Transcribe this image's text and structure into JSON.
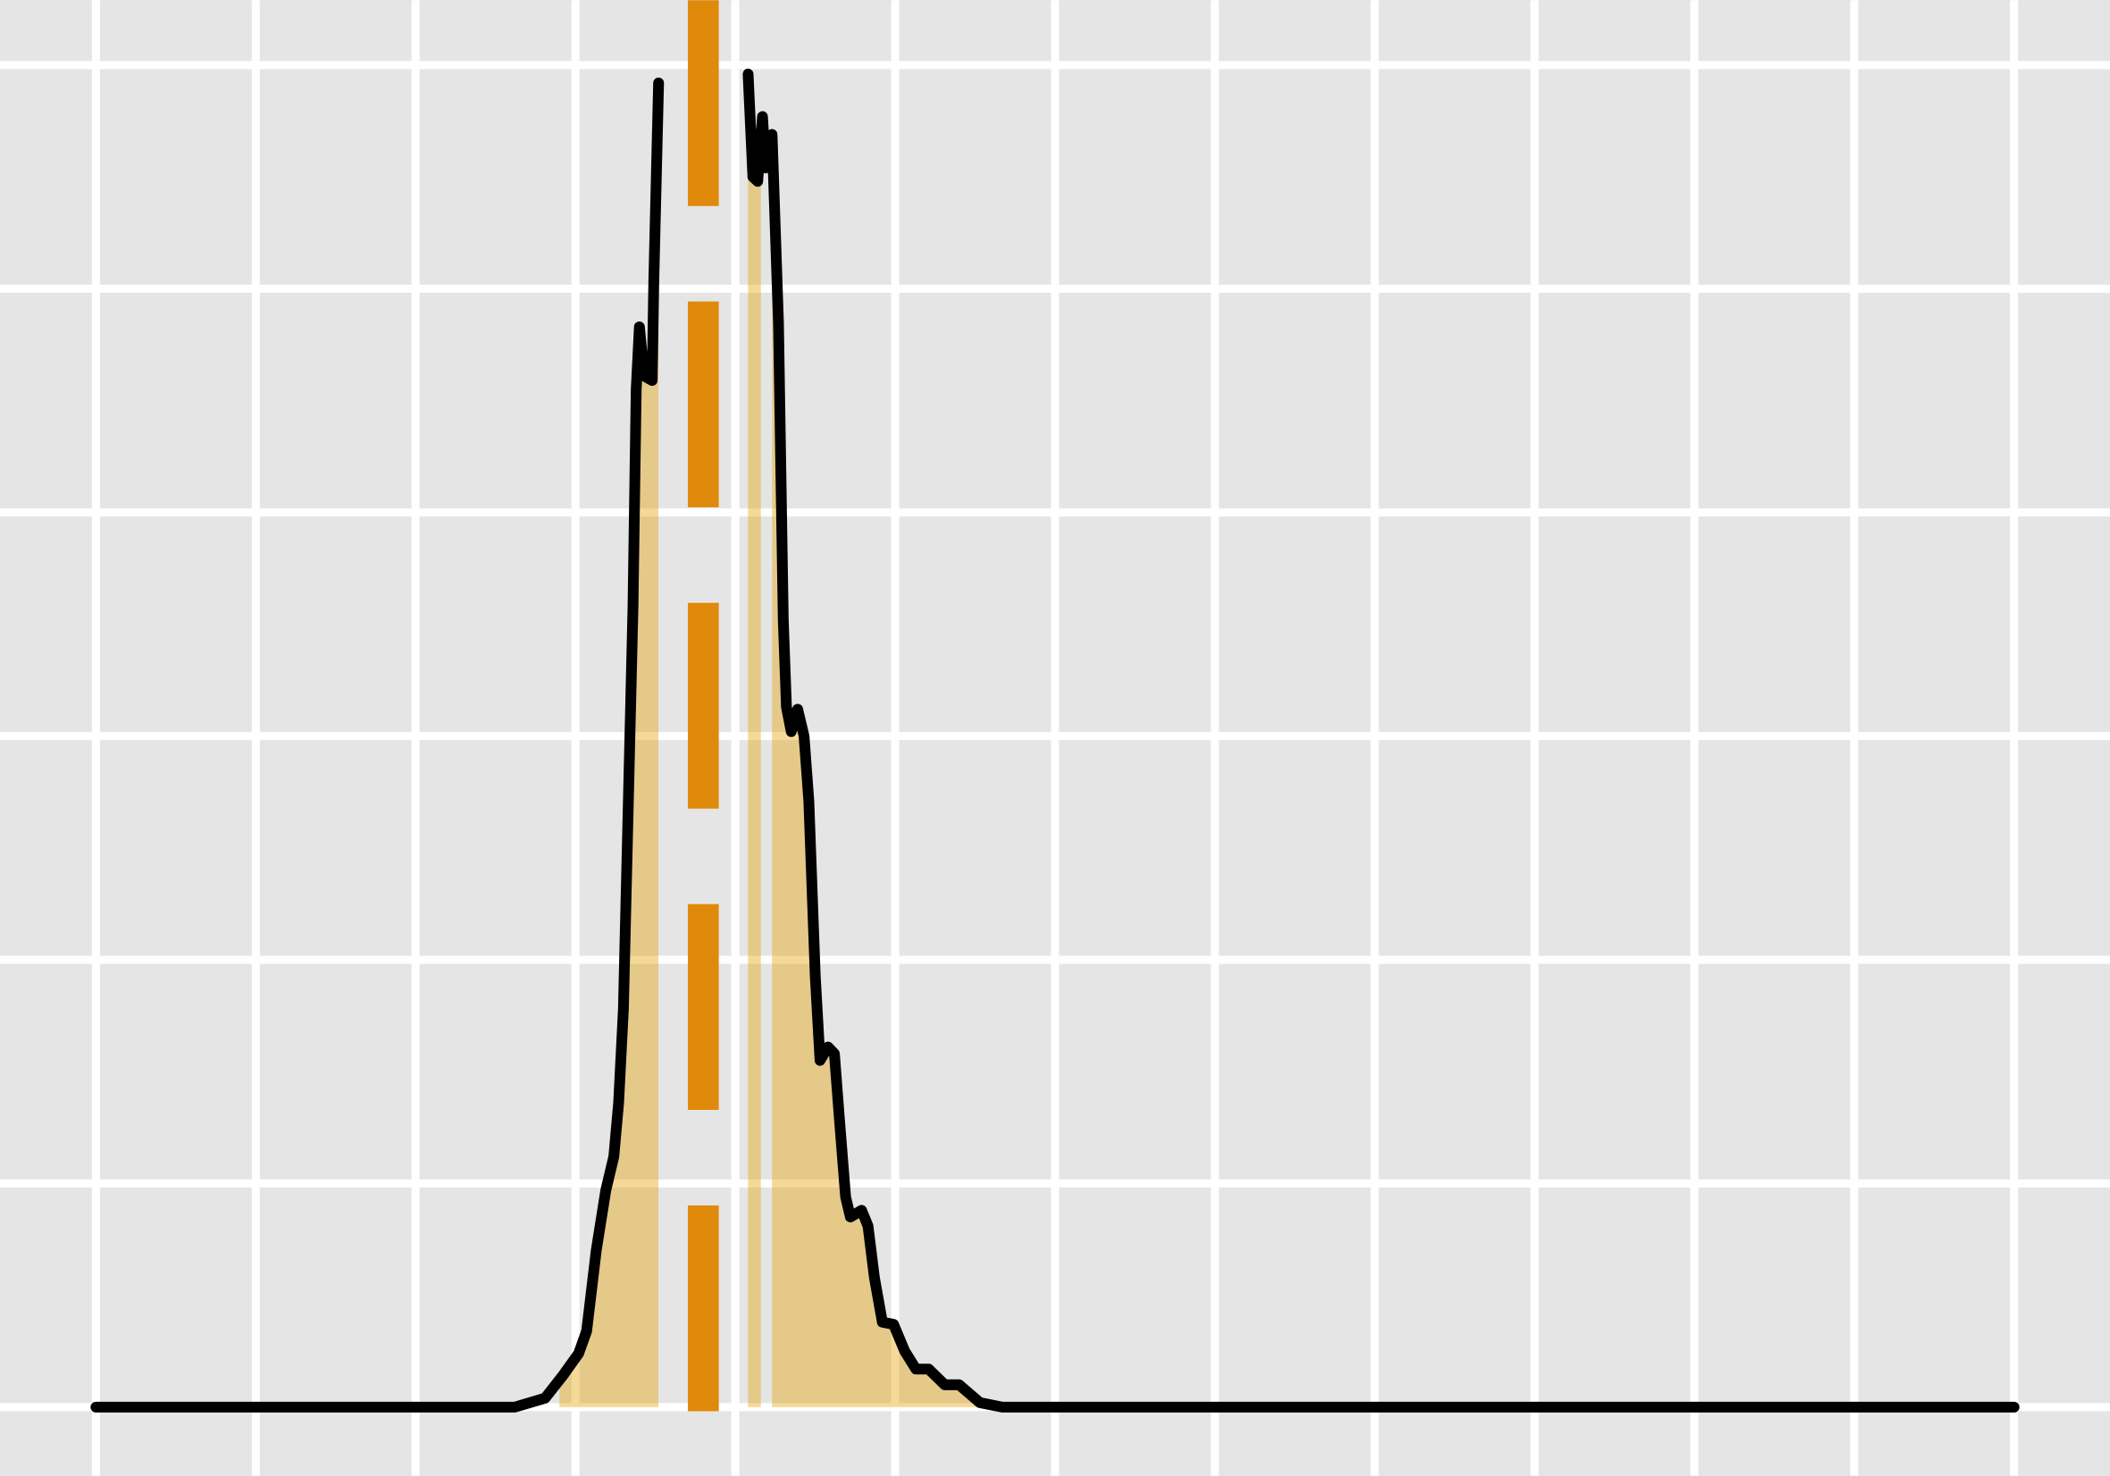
{
  "chart_data": {
    "type": "density",
    "x": [
      0,
      2.35,
      2.62,
      2.81,
      2.92,
      3.02,
      3.07,
      3.13,
      3.19,
      3.24,
      3.27,
      3.3,
      3.32,
      3.36,
      3.38,
      3.4,
      3.43,
      3.48,
      3.49,
      3.52,
      3.8,
      4.08,
      4.11,
      4.14,
      4.17,
      4.19,
      4.23,
      4.27,
      4.3,
      4.32,
      4.35,
      4.39,
      4.43,
      4.46,
      4.5,
      4.53,
      4.58,
      4.62,
      4.65,
      4.69,
      4.72,
      4.79,
      4.83,
      4.87,
      4.92,
      4.99,
      5.06,
      5.13,
      5.21,
      5.31,
      5.4,
      5.53,
      5.67,
      12
    ],
    "values": [
      0,
      0,
      0,
      0.04,
      0.14,
      0.24,
      0.34,
      0.7,
      0.97,
      1.12,
      1.36,
      1.78,
      2.38,
      3.58,
      4.55,
      4.83,
      4.61,
      4.59,
      5.03,
      5.92,
      null,
      5.96,
      5.5,
      5.48,
      5.77,
      5.54,
      5.69,
      4.85,
      3.52,
      3.13,
      3.02,
      3.12,
      3.0,
      2.71,
      1.93,
      1.55,
      1.61,
      1.58,
      1.3,
      0.94,
      0.85,
      0.88,
      0.81,
      0.58,
      0.38,
      0.37,
      0.25,
      0.17,
      0.17,
      0.1,
      0.1,
      0.02,
      0,
      0
    ],
    "line_color": "#000000",
    "shade_ranges": [
      [
        2.9,
        3.52
      ],
      [
        4.07,
        4.16
      ],
      [
        4.23,
        5.63
      ]
    ],
    "shade_color": "#e69f00",
    "shade_opacity": 0.4,
    "vline": 3.8,
    "vline_color": "#e08a0b",
    "xlim": [
      -0.6,
      12.6
    ],
    "ylim": [
      -0.307,
      6.29
    ],
    "xticks": [
      0,
      1,
      2,
      3,
      4,
      5,
      6,
      7,
      8,
      9,
      10,
      11,
      12
    ],
    "yticks": [
      0,
      1,
      2,
      3,
      4,
      5,
      6
    ],
    "grid": true
  }
}
